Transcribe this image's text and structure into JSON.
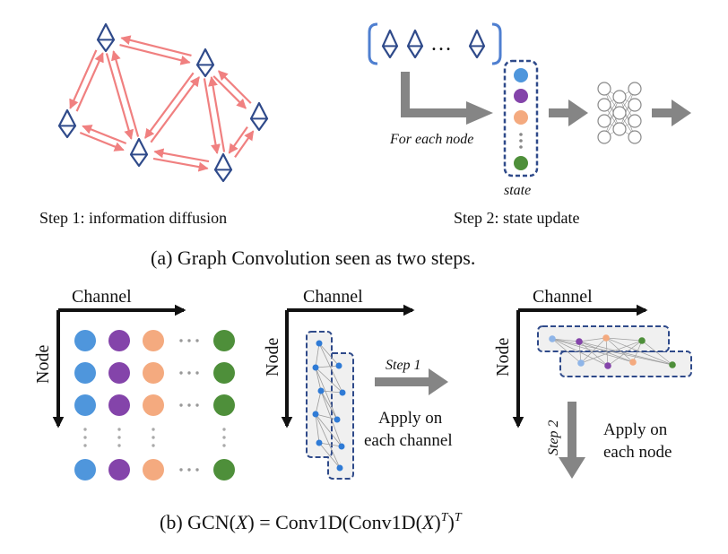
{
  "panel_a": {
    "step1_caption": "Step 1: information diffusion",
    "step2_caption": "Step 2: state update",
    "for_each_node": "For each node",
    "state_label": "state",
    "ellipsis": "…",
    "caption": "(a) Graph Convolution seen as two steps."
  },
  "panel_b": {
    "channel_label": "Channel",
    "node_label": "Node",
    "step1_label": "Step 1",
    "step2_label": "Step 2",
    "apply_channel_line1": "Apply on",
    "apply_channel_line2": "each channel",
    "apply_node_line1": "Apply on",
    "apply_node_line2": "each node",
    "dots_h": "⋯",
    "caption_prefix": "(b) GCN(",
    "caption_var": "X",
    "caption_mid": ") = Conv1D(Conv1D(",
    "caption_t1": ")",
    "caption_sup": "T",
    "caption_t2": ")"
  },
  "colors": {
    "node_outline": "#2f4a8a",
    "edge_arrow": "#f08080",
    "dark_arrow": "#111111",
    "gray_arrow": "#858585",
    "blue": "#4f96dc",
    "purple": "#8444aa",
    "orange": "#f4aa7f",
    "green": "#4e8f3a",
    "dash_box": "#2f4a8a"
  },
  "icons": [
    "diamond-node-icon",
    "neural-network-icon"
  ]
}
